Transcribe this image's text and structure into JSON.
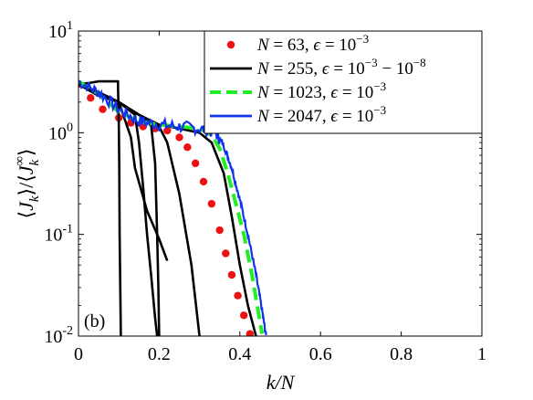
{
  "chart_data": {
    "type": "line",
    "panel_label": "(b)",
    "xlabel": "k/N",
    "ylabel": "⟨J_k⟩/⟨J_k^∞⟩",
    "xlim": [
      0,
      1
    ],
    "ylim": [
      0.01,
      10
    ],
    "yscale": "log",
    "xticks": [
      0,
      0.2,
      0.4,
      0.6,
      0.8,
      1
    ],
    "xtick_labels": [
      "0",
      "0.2",
      "0.4",
      "0.6",
      "0.8",
      "1"
    ],
    "yticks": [
      0.01,
      0.1,
      1,
      10
    ],
    "ytick_labels": [
      {
        "base": "10",
        "exp": "-2"
      },
      {
        "base": "10",
        "exp": "-1"
      },
      {
        "base": "10",
        "exp": "0"
      },
      {
        "base": "10",
        "exp": "1"
      }
    ],
    "legend_position": "top-right",
    "series": [
      {
        "name": "N = 63, ϵ = 10^-3",
        "label": {
          "a": "N",
          "b": " = 63, ",
          "c": "ϵ",
          "d": " = 10",
          "e": "−3"
        },
        "style": "dots",
        "color": "#ee1111",
        "x": [
          0.0,
          0.03,
          0.06,
          0.1,
          0.13,
          0.16,
          0.19,
          0.22,
          0.25,
          0.27,
          0.29,
          0.31,
          0.33,
          0.35,
          0.365,
          0.38,
          0.395,
          0.41,
          0.425
        ],
        "y": [
          3.0,
          2.2,
          1.7,
          1.4,
          1.25,
          1.15,
          1.1,
          1.05,
          0.9,
          0.72,
          0.5,
          0.33,
          0.2,
          0.11,
          0.065,
          0.04,
          0.025,
          0.016,
          0.0105
        ]
      },
      {
        "name": "N = 255, ϵ = 10^-3 - 10^-8",
        "label": {
          "a": "N",
          "b": " = 255, ",
          "c": "ϵ",
          "d": " = 10",
          "e": "−3",
          "f": " − 10",
          "g": "−8"
        },
        "style": "solid",
        "color": "#000000",
        "curves": [
          {
            "x": [
              0.0,
              0.03,
              0.05,
              0.05,
              0.098,
              0.098,
              0.1,
              0.101,
              0.102,
              0.105
            ],
            "y": [
              3.0,
              3.1,
              3.2,
              3.2,
              3.2,
              2.8,
              1.2,
              0.5,
              0.1,
              0.01
            ]
          },
          {
            "x": [
              0.0,
              0.05,
              0.1,
              0.13,
              0.14,
              0.17,
              0.2,
              0.22
            ],
            "y": [
              3.0,
              2.3,
              2.0,
              0.9,
              0.45,
              0.17,
              0.09,
              0.055
            ]
          },
          {
            "x": [
              0.0,
              0.05,
              0.1,
              0.14,
              0.15,
              0.16,
              0.17,
              0.18,
              0.19,
              0.195
            ],
            "y": [
              3.0,
              2.4,
              2.0,
              1.5,
              0.8,
              0.3,
              0.1,
              0.04,
              0.015,
              0.01
            ]
          },
          {
            "x": [
              0.0,
              0.05,
              0.1,
              0.15,
              0.18,
              0.19,
              0.195,
              0.198,
              0.2
            ],
            "y": [
              3.0,
              2.4,
              2.0,
              1.5,
              1.2,
              0.5,
              0.1,
              0.03,
              0.01
            ]
          },
          {
            "x": [
              0.0,
              0.05,
              0.1,
              0.15,
              0.2,
              0.22,
              0.25,
              0.28,
              0.3
            ],
            "y": [
              3.0,
              2.5,
              2.0,
              1.5,
              1.15,
              0.8,
              0.25,
              0.05,
              0.01
            ]
          },
          {
            "x": [
              0.0,
              0.05,
              0.1,
              0.15,
              0.2,
              0.25,
              0.3,
              0.33,
              0.36,
              0.38,
              0.4,
              0.42,
              0.44
            ],
            "y": [
              3.0,
              2.5,
              2.0,
              1.5,
              1.2,
              1.1,
              1.0,
              0.8,
              0.4,
              0.15,
              0.05,
              0.02,
              0.01
            ]
          }
        ]
      },
      {
        "name": "N = 1023, ϵ = 10^-3",
        "label": {
          "a": "N",
          "b": " = 1023, ",
          "c": "ϵ",
          "d": " = 10",
          "e": "−3"
        },
        "style": "dashed",
        "color": "#22ee22",
        "x": [
          0.0,
          0.05,
          0.1,
          0.15,
          0.2,
          0.25,
          0.3,
          0.33,
          0.35,
          0.37,
          0.39,
          0.41,
          0.43,
          0.445,
          0.455
        ],
        "y": [
          3.2,
          2.4,
          1.6,
          1.3,
          1.2,
          1.15,
          1.1,
          0.95,
          0.7,
          0.4,
          0.2,
          0.1,
          0.04,
          0.018,
          0.0105
        ]
      },
      {
        "name": "N = 2047, ϵ = 10^-3",
        "label": {
          "a": "N",
          "b": " = 2047, ",
          "c": "ϵ",
          "d": " = 10",
          "e": "−3"
        },
        "style": "solid-noisy",
        "color": "#1133ee",
        "x": [
          0.0,
          0.05,
          0.1,
          0.15,
          0.2,
          0.25,
          0.3,
          0.34,
          0.36,
          0.38,
          0.4,
          0.42,
          0.44,
          0.455,
          0.465
        ],
        "y": [
          3.2,
          2.5,
          1.7,
          1.3,
          1.2,
          1.15,
          1.1,
          1.0,
          0.75,
          0.45,
          0.22,
          0.1,
          0.04,
          0.018,
          0.01
        ]
      }
    ]
  }
}
